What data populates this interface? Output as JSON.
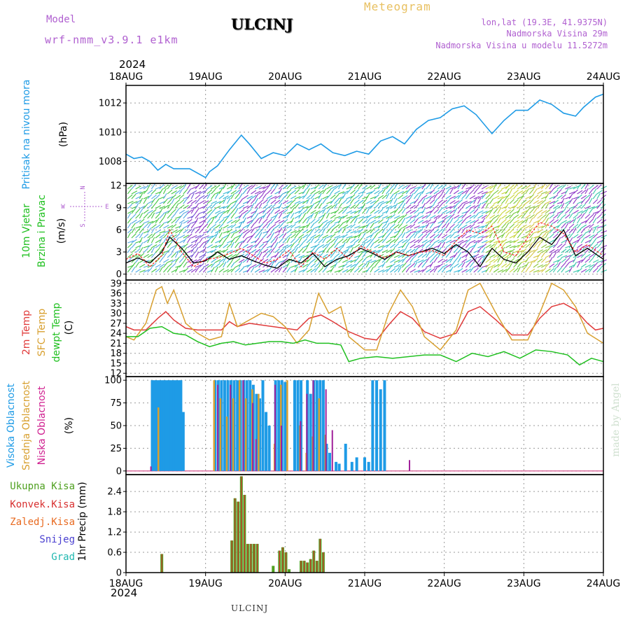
{
  "header": {
    "model_label": "Model",
    "model_name": "wrf-nmm_v3.9.1 e1km",
    "station": "ULCINJ",
    "product": "Meteogram",
    "lonlat": "lon,lat (19.3E, 41.9375N)",
    "altitude": "Nadmorska Visina 29m",
    "model_altitude": "Nadmorska Visina u modelu 11.5272m",
    "year": "2024",
    "footer_station": "ULCINJ",
    "credit": "made by Angel"
  },
  "colors": {
    "pressure": "#1e9be6",
    "temp2m": "#e03a3a",
    "sfc_temp": "#d8a030",
    "dewpt": "#20c020",
    "high_cloud": "#1e9be6",
    "mid_cloud": "#d8a030",
    "low_cloud": "#a0209a",
    "total_precip": "#4fa020",
    "convective": "#d83030",
    "frozen": "#e86a20",
    "snow": "#4a40d0",
    "graupel": "#20b8b0",
    "wind_speed": "#000000",
    "wind_gust": "#ff2020"
  },
  "chart_data": [
    {
      "type": "line",
      "panel": "pressure",
      "title": "",
      "ylabel": [
        "Pritisak na nivou mora",
        "(hPa)"
      ],
      "x_ticks": [
        "18AUG",
        "19AUG",
        "20AUG",
        "21AUG",
        "22AUG",
        "23AUG",
        "24AUG"
      ],
      "x_unit": "days since 18AUG 00Z",
      "yticks": [
        1008,
        1010,
        1012
      ],
      "ylim": [
        1006.5,
        1013.2
      ],
      "grid": true,
      "series": [
        {
          "name": "Pritisak na nivou mora",
          "x": [
            0.0,
            0.1,
            0.2,
            0.3,
            0.4,
            0.5,
            0.6,
            0.8,
            1.0,
            1.05,
            1.15,
            1.3,
            1.45,
            1.55,
            1.7,
            1.85,
            2.0,
            2.15,
            2.3,
            2.45,
            2.6,
            2.75,
            2.9,
            3.05,
            3.2,
            3.35,
            3.5,
            3.65,
            3.8,
            3.95,
            4.1,
            4.25,
            4.4,
            4.6,
            4.75,
            4.9,
            5.05,
            5.2,
            5.35,
            5.5,
            5.65,
            5.75,
            5.9,
            6.0
          ],
          "values": [
            1008.5,
            1008.2,
            1008.3,
            1008.0,
            1007.4,
            1007.8,
            1007.5,
            1007.5,
            1006.9,
            1007.3,
            1007.7,
            1008.8,
            1009.8,
            1009.2,
            1008.2,
            1008.6,
            1008.4,
            1009.2,
            1008.8,
            1009.2,
            1008.6,
            1008.4,
            1008.7,
            1008.5,
            1009.4,
            1009.7,
            1009.2,
            1010.2,
            1010.8,
            1011.0,
            1011.6,
            1011.8,
            1011.2,
            1009.9,
            1010.8,
            1011.5,
            1011.5,
            1012.2,
            1011.9,
            1011.3,
            1011.1,
            1011.7,
            1012.4,
            1012.6
          ]
        }
      ]
    },
    {
      "type": "line",
      "panel": "wind",
      "ylabel": [
        "10m Vjetar",
        "Brzina i Pravac",
        "(m/s)"
      ],
      "compass": [
        "N",
        "W",
        "E",
        "S"
      ],
      "yticks": [
        0,
        3,
        6,
        9,
        12
      ],
      "ylim": [
        -0.8,
        12.3
      ],
      "grid": true,
      "series": [
        {
          "name": "brzina",
          "x": [
            0.0,
            0.15,
            0.3,
            0.45,
            0.55,
            0.7,
            0.85,
            1.0,
            1.15,
            1.3,
            1.45,
            1.6,
            1.75,
            1.9,
            2.05,
            2.2,
            2.35,
            2.5,
            2.65,
            2.8,
            2.95,
            3.1,
            3.25,
            3.4,
            3.55,
            3.7,
            3.85,
            4.0,
            4.15,
            4.3,
            4.45,
            4.6,
            4.75,
            4.9,
            5.05,
            5.2,
            5.35,
            5.5,
            5.65,
            5.8,
            6.0
          ],
          "values": [
            1.5,
            2.2,
            1.5,
            3.0,
            5.0,
            3.5,
            1.5,
            1.8,
            3.0,
            2.0,
            2.5,
            1.8,
            1.2,
            0.8,
            2.0,
            1.5,
            2.8,
            1.0,
            2.0,
            2.5,
            3.5,
            2.8,
            2.0,
            3.0,
            2.5,
            3.0,
            3.5,
            2.8,
            4.0,
            3.0,
            1.0,
            3.5,
            2.0,
            1.5,
            3.0,
            5.0,
            4.0,
            6.0,
            2.5,
            3.5,
            2.0
          ]
        },
        {
          "name": "udar",
          "x": [
            0.0,
            0.15,
            0.3,
            0.45,
            0.55,
            0.7,
            0.85,
            1.0,
            1.15,
            1.3,
            1.45,
            1.6,
            1.75,
            1.9,
            2.05,
            2.2,
            2.35,
            2.5,
            2.65,
            2.8,
            2.95,
            3.1,
            3.25,
            3.4,
            3.55,
            3.7,
            3.85,
            4.0,
            4.15,
            4.3,
            4.45,
            4.6,
            4.75,
            4.9,
            5.05,
            5.2,
            5.35,
            5.5,
            5.65,
            5.8,
            6.0
          ],
          "values": [
            2.0,
            2.8,
            1.0,
            2.5,
            6.0,
            3.0,
            1.0,
            2.0,
            2.2,
            2.8,
            3.5,
            2.5,
            1.5,
            2.0,
            3.2,
            1.0,
            3.0,
            2.0,
            3.5,
            2.0,
            3.8,
            3.0,
            2.2,
            3.0,
            2.5,
            3.0,
            3.2,
            2.5,
            4.5,
            6.0,
            5.5,
            6.5,
            3.0,
            2.5,
            5.0,
            7.0,
            6.5,
            5.5,
            3.0,
            4.0,
            2.5
          ]
        }
      ]
    },
    {
      "type": "line",
      "panel": "temperature",
      "ylabel": [
        "2m Temp",
        "SFC Temp",
        "dewpt Temp",
        "(C)"
      ],
      "yticks": [
        12,
        15,
        18,
        21,
        24,
        27,
        30,
        33,
        36,
        39
      ],
      "ylim": [
        11,
        40
      ],
      "grid": true,
      "series": [
        {
          "name": "2m Temp",
          "x": [
            0.0,
            0.1,
            0.25,
            0.4,
            0.5,
            0.6,
            0.75,
            0.9,
            1.05,
            1.2,
            1.3,
            1.4,
            1.55,
            1.7,
            1.85,
            2.0,
            2.15,
            2.3,
            2.45,
            2.6,
            2.8,
            3.0,
            3.15,
            3.3,
            3.45,
            3.6,
            3.75,
            3.95,
            4.15,
            4.3,
            4.45,
            4.65,
            4.85,
            5.05,
            5.2,
            5.35,
            5.5,
            5.65,
            5.8,
            5.9,
            6.0
          ],
          "values": [
            26.0,
            25.0,
            25.0,
            28.5,
            30.5,
            28.0,
            25.5,
            25.0,
            25.0,
            25.0,
            27.5,
            26.0,
            27.0,
            26.5,
            26.0,
            25.5,
            25.0,
            28.5,
            29.5,
            27.5,
            24.5,
            22.5,
            22.0,
            26.5,
            30.5,
            28.5,
            24.5,
            22.5,
            24.0,
            30.5,
            32.0,
            28.0,
            23.5,
            23.5,
            28.5,
            32.0,
            33.0,
            31.0,
            27.0,
            25.0,
            25.5
          ]
        },
        {
          "name": "SFC Temp",
          "x": [
            0.0,
            0.1,
            0.25,
            0.38,
            0.45,
            0.52,
            0.6,
            0.75,
            0.9,
            1.05,
            1.2,
            1.3,
            1.4,
            1.55,
            1.7,
            1.85,
            2.0,
            2.15,
            2.3,
            2.42,
            2.55,
            2.7,
            2.8,
            3.0,
            3.15,
            3.3,
            3.45,
            3.6,
            3.75,
            3.95,
            4.15,
            4.3,
            4.45,
            4.65,
            4.85,
            5.05,
            5.2,
            5.35,
            5.5,
            5.65,
            5.8,
            6.0
          ],
          "values": [
            23.0,
            22.0,
            27.0,
            37.0,
            38.0,
            33.0,
            37.0,
            27.0,
            24.0,
            22.0,
            23.0,
            33.0,
            26.0,
            28.0,
            30.0,
            29.0,
            26.0,
            21.0,
            25.0,
            36.0,
            30.0,
            32.0,
            23.0,
            19.0,
            19.0,
            30.0,
            37.0,
            32.0,
            23.0,
            19.0,
            25.0,
            37.0,
            39.0,
            30.0,
            22.0,
            22.0,
            30.0,
            39.0,
            37.0,
            32.0,
            24.0,
            21.0
          ]
        },
        {
          "name": "dewpt Temp",
          "x": [
            0.0,
            0.15,
            0.3,
            0.45,
            0.6,
            0.75,
            0.9,
            1.05,
            1.2,
            1.35,
            1.5,
            1.65,
            1.8,
            1.95,
            2.1,
            2.25,
            2.4,
            2.55,
            2.7,
            2.8,
            2.95,
            3.15,
            3.35,
            3.55,
            3.75,
            3.95,
            4.15,
            4.35,
            4.55,
            4.75,
            4.95,
            5.15,
            5.35,
            5.55,
            5.7,
            5.85,
            6.0
          ],
          "values": [
            23.0,
            23.0,
            25.5,
            26.0,
            24.0,
            23.5,
            21.5,
            20.0,
            21.0,
            21.5,
            20.5,
            21.0,
            21.5,
            21.5,
            21.0,
            22.0,
            21.0,
            21.0,
            20.5,
            15.5,
            16.5,
            17.0,
            16.5,
            17.0,
            17.5,
            17.5,
            15.5,
            18.0,
            17.0,
            18.5,
            16.5,
            19.0,
            18.5,
            17.5,
            14.5,
            16.5,
            15.5
          ]
        }
      ]
    },
    {
      "type": "bar",
      "panel": "clouds",
      "ylabel": [
        "Visoka Oblacnost",
        "Srednja Oblacnost",
        "Niska Oblacnost",
        "(%)"
      ],
      "yticks": [
        0,
        25,
        50,
        75,
        100
      ],
      "ylim": [
        -4,
        104
      ],
      "grid": true,
      "series": [
        {
          "name": "Visoka Oblacnost",
          "x": [
            0.33,
            0.36,
            0.39,
            0.42,
            0.45,
            0.48,
            0.51,
            0.54,
            0.57,
            0.6,
            0.63,
            0.66,
            0.69,
            0.72,
            1.12,
            1.16,
            1.2,
            1.24,
            1.28,
            1.32,
            1.36,
            1.4,
            1.44,
            1.48,
            1.52,
            1.56,
            1.6,
            1.64,
            1.68,
            1.72,
            1.76,
            1.8,
            1.88,
            1.92,
            1.96,
            2.0,
            2.04,
            2.12,
            2.16,
            2.2,
            2.24,
            2.28,
            2.32,
            2.36,
            2.4,
            2.44,
            2.48,
            2.52,
            2.56,
            2.64,
            2.68,
            2.76,
            2.84,
            2.9,
            3.0,
            3.05,
            3.1,
            3.15,
            3.2,
            3.25
          ],
          "values": [
            100,
            100,
            100,
            100,
            100,
            100,
            100,
            100,
            100,
            100,
            100,
            100,
            100,
            65,
            100,
            100,
            100,
            100,
            100,
            100,
            100,
            100,
            100,
            100,
            100,
            100,
            95,
            85,
            80,
            100,
            65,
            50,
            100,
            100,
            100,
            98,
            0,
            100,
            100,
            100,
            0,
            100,
            85,
            100,
            100,
            100,
            100,
            30,
            20,
            10,
            8,
            30,
            10,
            15,
            15,
            10,
            100,
            100,
            90,
            100
          ]
        },
        {
          "name": "Srednja Oblacnost",
          "x": [
            0.33,
            0.42,
            0.51,
            1.12,
            1.2,
            1.28,
            1.36,
            1.44,
            1.52,
            1.6,
            1.68,
            1.76,
            1.88,
            1.96,
            2.04,
            2.2,
            2.28,
            2.36,
            2.44,
            2.52
          ],
          "values": [
            0,
            70,
            0,
            100,
            80,
            60,
            80,
            100,
            80,
            90,
            85,
            0,
            30,
            95,
            100,
            50,
            20,
            38,
            80,
            40
          ]
        },
        {
          "name": "Niska Oblacnost",
          "x": [
            0.3,
            1.14,
            1.3,
            1.46,
            1.58,
            1.62,
            1.86,
            1.94,
            2.18,
            2.26,
            2.34,
            2.42,
            2.5,
            2.58,
            3.55
          ],
          "values": [
            5,
            95,
            95,
            100,
            75,
            35,
            95,
            50,
            55,
            85,
            100,
            0,
            90,
            45,
            12
          ]
        }
      ]
    },
    {
      "type": "bar",
      "panel": "precipitation",
      "ylabel": [
        "1hr Precip (mm)"
      ],
      "legend": [
        "Ukupna Kisa",
        "Konvek.Kisa",
        "Zaledj.Kisa",
        "Snijeg",
        "Grad"
      ],
      "yticks": [
        0,
        0.6,
        1.2,
        1.8,
        2.4
      ],
      "ylim": [
        0,
        2.9
      ],
      "grid": true,
      "series": [
        {
          "name": "Ukupna Kisa",
          "x": [
            0.45,
            1.33,
            1.37,
            1.41,
            1.45,
            1.49,
            1.53,
            1.57,
            1.61,
            1.65,
            1.85,
            1.93,
            1.97,
            2.01,
            2.05,
            2.2,
            2.24,
            2.28,
            2.32,
            2.36,
            2.4,
            2.44,
            2.48
          ],
          "values": [
            0.55,
            0.95,
            2.2,
            2.1,
            2.85,
            2.3,
            0.85,
            0.85,
            0.85,
            0.85,
            0.2,
            0.65,
            0.75,
            0.6,
            0.1,
            0.35,
            0.35,
            0.3,
            0.4,
            0.65,
            0.35,
            1.0,
            0.6
          ]
        },
        {
          "name": "Konvek.Kisa",
          "x": [
            0.45,
            1.33,
            1.37,
            1.41,
            1.45,
            1.49,
            1.53,
            1.57,
            1.61,
            1.65,
            1.93,
            1.97,
            2.01,
            2.2,
            2.24,
            2.28,
            2.32,
            2.36,
            2.4,
            2.44,
            2.48
          ],
          "values": [
            0.55,
            0.95,
            2.2,
            2.1,
            2.85,
            2.3,
            0.85,
            0.85,
            0.85,
            0.85,
            0.65,
            0.75,
            0.6,
            0.35,
            0.35,
            0.3,
            0.4,
            0.65,
            0.35,
            1.0,
            0.6
          ]
        }
      ]
    }
  ]
}
